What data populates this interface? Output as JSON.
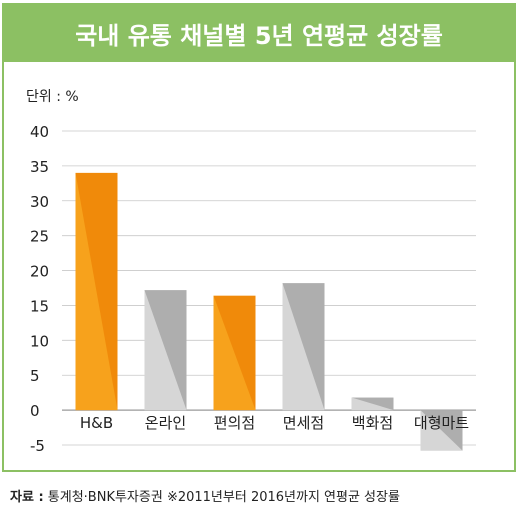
{
  "title": "국내 유통 채널별 5년 연평균 성장률",
  "unit_label": "단위 : %",
  "source": {
    "label": "자료 :",
    "text": "통계청·BNK투자증권 ※2011년부터 2016년까지 연평균 성장률"
  },
  "colors": {
    "frame": "#8cc063",
    "orange": "#f08a0a",
    "orange_light": "#f7a21c",
    "gray": "#aeaeae",
    "gray_light": "#d6d6d6"
  },
  "chart_data": {
    "type": "bar",
    "title": "국내 유통 채널별 5년 연평균 성장률",
    "categories": [
      "H&B",
      "온라인",
      "편의점",
      "면세점",
      "백화점",
      "대형마트"
    ],
    "values": [
      34,
      17.2,
      16.4,
      18.2,
      1.8,
      -5.8
    ],
    "bar_colors": [
      "orange",
      "gray",
      "orange",
      "gray",
      "gray",
      "gray"
    ],
    "ylim": [
      -5,
      40
    ],
    "yticks": [
      -5,
      0,
      5,
      10,
      15,
      20,
      25,
      30,
      35,
      40
    ],
    "ylabel": "단위 : %",
    "xlabel": "",
    "grid": true,
    "legend": "none"
  }
}
